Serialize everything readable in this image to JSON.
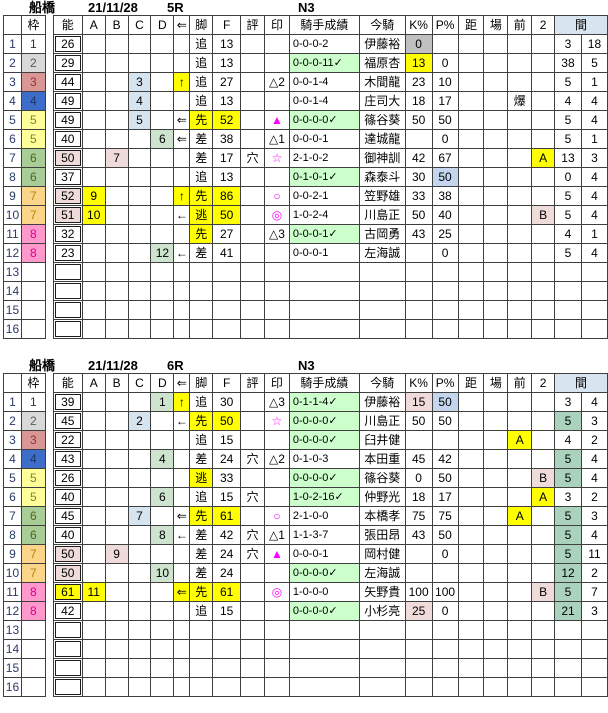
{
  "headers": [
    "",
    "枠",
    "",
    "能",
    "A",
    "B",
    "C",
    "D",
    "⇐",
    "脚",
    "F",
    "評",
    "印",
    "騎手成績",
    "今騎",
    "K%",
    "P%",
    "距",
    "場",
    "前",
    "2",
    "間"
  ],
  "colors": {
    "highlight_yellow": "#ffff00",
    "pale_blue": "#d6e4f0",
    "p_percent_blue": "#c3d6ee",
    "pale_green": "#cfe4cf",
    "interval_green": "#aad2bd",
    "rose": "#f0dbdb",
    "gray": "#c0c0c0",
    "record_green": "#ccffcc",
    "mark_magenta": "#ff00ff",
    "frame_colors": [
      "#ffffff",
      "#d9d9d9",
      "#da9694",
      "#3e6cc9",
      "#ffff99",
      "#a9cd96",
      "#fbd58a",
      "#ff99cc"
    ]
  },
  "tables": [
    {
      "title": {
        "track": "船橋",
        "date": "21/11/28",
        "race": "5R",
        "class": "N3"
      },
      "rows": [
        {
          "n": "1",
          "w": "1",
          "no": "26",
          "ashi": "追",
          "f": "13",
          "sei": "0-0-0-2",
          "jk": "伊藤裕",
          "k": "0",
          "kbg": "gray",
          "p": "",
          "m1": "3",
          "m2": "18"
        },
        {
          "n": "2",
          "w": "2",
          "no": "29",
          "ashi": "追",
          "f": "13",
          "sei": "0-0-0-11✓",
          "seiG": 1,
          "jk": "福原杏",
          "k": "13",
          "kbg": "y",
          "p": "0",
          "m1": "38",
          "m2": "5"
        },
        {
          "n": "3",
          "w": "3",
          "no": "44",
          "c": "3",
          "arw": "↑",
          "arwY": 1,
          "ashi": "追",
          "f": "27",
          "mk": "△2",
          "sei": "0-0-1-4",
          "jk": "木間龍",
          "k": "23",
          "p": "10",
          "m1": "5",
          "m2": "1"
        },
        {
          "n": "4",
          "w": "4",
          "no": "49",
          "c": "4",
          "ashi": "追",
          "f": "13",
          "sei": "0-0-1-4",
          "jk": "庄司大",
          "k": "18",
          "p": "17",
          "mae": "爆",
          "m1": "4",
          "m2": "4"
        },
        {
          "n": "5",
          "w": "5",
          "no": "49",
          "c": "5",
          "arw": "⇐",
          "ashi": "先",
          "ashiY": 1,
          "f": "52",
          "fY": 1,
          "mk": "▲",
          "mkM": 1,
          "sei": "0-0-0-0✓",
          "seiG": 1,
          "jk": "篠谷葵",
          "k": "50",
          "p": "50",
          "m1": "5",
          "m2": "4"
        },
        {
          "n": "6",
          "w": "5",
          "no": "40",
          "d": "6",
          "arw": "⇐",
          "ashi": "差",
          "f": "38",
          "mk": "△1",
          "sei": "0-0-0-1",
          "jk": "達城龍",
          "k": "",
          "p": "0",
          "m1": "5",
          "m2": "1"
        },
        {
          "n": "7",
          "w": "6",
          "no": "50",
          "nobg": "rose",
          "b": "7",
          "ashi": "差",
          "f": "17",
          "hyo": "穴",
          "mk": "☆",
          "mkM": 1,
          "sei": "2-1-0-2",
          "jk": "御神訓",
          "k": "42",
          "p": "67",
          "two": "A",
          "twoBg": "y",
          "m1": "13",
          "m2": "3"
        },
        {
          "n": "8",
          "w": "6",
          "no": "37",
          "ashi": "追",
          "f": "13",
          "sei": "0-1-0-1✓",
          "seiG": 1,
          "jk": "森泰斗",
          "k": "30",
          "p": "50",
          "pbg": "bluep",
          "m1": "0",
          "m2": "4"
        },
        {
          "n": "9",
          "w": "7",
          "no": "52",
          "nobg": "rose",
          "a": "9",
          "arw": "↑",
          "arwY": 1,
          "ashi": "先",
          "ashiY": 1,
          "f": "86",
          "fY": 1,
          "mk": "○",
          "mkM": 1,
          "sei": "0-0-2-1",
          "jk": "笠野雄",
          "k": "33",
          "p": "38",
          "m1": "5",
          "m2": "4"
        },
        {
          "n": "10",
          "w": "7",
          "no": "51",
          "nobg": "rose",
          "a": "10",
          "arw": "←",
          "ashi": "逃",
          "ashiY": 1,
          "f": "50",
          "fY": 1,
          "mk": "◎",
          "mkM": 1,
          "sei": "1-0-2-4",
          "jk": "川島正",
          "k": "50",
          "p": "40",
          "two": "B",
          "twoBg": "rose",
          "m1": "5",
          "m2": "4"
        },
        {
          "n": "11",
          "w": "8",
          "no": "32",
          "ashi": "先",
          "ashiY": 1,
          "f": "27",
          "mk": "△3",
          "sei": "0-0-0-1✓",
          "seiG": 1,
          "jk": "古岡勇",
          "k": "43",
          "p": "25",
          "m1": "4",
          "m2": "1"
        },
        {
          "n": "12",
          "w": "8",
          "no": "23",
          "d": "12",
          "arw": "←",
          "ashi": "差",
          "f": "41",
          "sei": "0-0-0-1",
          "jk": "左海誠",
          "k": "",
          "p": "0",
          "m1": "5",
          "m2": "4"
        },
        {
          "n": "13"
        },
        {
          "n": "14"
        },
        {
          "n": "15"
        },
        {
          "n": "16"
        }
      ]
    },
    {
      "title": {
        "track": "船橋",
        "date": "21/11/28",
        "race": "6R",
        "class": "N3"
      },
      "rows": [
        {
          "n": "1",
          "w": "1",
          "no": "39",
          "d": "1",
          "arw": "↑",
          "arwY": 1,
          "ashi": "追",
          "f": "30",
          "mk": "△3",
          "sei": "0-1-1-4✓",
          "seiG": 1,
          "jk": "伊藤裕",
          "k": "15",
          "kbg": "rose",
          "p": "50",
          "pbg": "bluep",
          "m1": "3",
          "m2": "4"
        },
        {
          "n": "2",
          "w": "2",
          "no": "45",
          "c": "2",
          "arw": "←",
          "ashi": "先",
          "ashiY": 1,
          "f": "50",
          "fY": 1,
          "mk": "☆",
          "mkM": 1,
          "sei": "0-0-0-0✓",
          "seiG": 1,
          "jk": "川島正",
          "k": "50",
          "p": "50",
          "m1": "5",
          "m1G": 1,
          "m2": "3"
        },
        {
          "n": "3",
          "w": "3",
          "no": "22",
          "ashi": "追",
          "f": "15",
          "sei": "0-0-0-0✓",
          "seiG": 1,
          "jk": "臼井健",
          "k": "",
          "p": "",
          "mae": "A",
          "maeY": 1,
          "m1": "4",
          "m2": "2"
        },
        {
          "n": "4",
          "w": "4",
          "no": "43",
          "d": "4",
          "ashi": "差",
          "f": "24",
          "hyo": "穴",
          "mk": "△2",
          "sei": "0-1-0-3",
          "jk": "本田重",
          "k": "45",
          "p": "42",
          "m1": "5",
          "m1G": 1,
          "m2": "4"
        },
        {
          "n": "5",
          "w": "5",
          "no": "26",
          "ashi": "逃",
          "ashiY": 1,
          "f": "33",
          "sei": "0-0-0-0✓",
          "seiG": 1,
          "jk": "篠谷葵",
          "k": "0",
          "p": "50",
          "two": "B",
          "twoBg": "rose",
          "m1": "5",
          "m1G": 1,
          "m2": "4"
        },
        {
          "n": "6",
          "w": "5",
          "no": "40",
          "d": "6",
          "ashi": "追",
          "f": "15",
          "hyo": "穴",
          "sei": "1-0-2-16✓",
          "seiG": 1,
          "jk": "仲野光",
          "k": "18",
          "p": "17",
          "two": "A",
          "twoBg": "y",
          "m1": "3",
          "m2": "2"
        },
        {
          "n": "7",
          "w": "6",
          "no": "45",
          "c": "7",
          "arw": "⇐",
          "ashi": "先",
          "ashiY": 1,
          "f": "61",
          "fY": 1,
          "mk": "○",
          "mkM": 1,
          "sei": "2-1-0-0",
          "jk": "本橋孝",
          "k": "75",
          "p": "75",
          "mae": "A",
          "maeY": 1,
          "m1": "5",
          "m1G": 1,
          "m2": "3"
        },
        {
          "n": "8",
          "w": "6",
          "no": "40",
          "d": "8",
          "arw": "←",
          "ashi": "差",
          "f": "42",
          "hyo": "穴",
          "mk": "△1",
          "sei": "1-1-3-7",
          "jk": "張田昂",
          "k": "43",
          "p": "50",
          "m1": "5",
          "m1G": 1,
          "m2": "4"
        },
        {
          "n": "9",
          "w": "7",
          "no": "50",
          "nobg": "rose",
          "b": "9",
          "ashi": "差",
          "f": "24",
          "hyo": "穴",
          "mk": "▲",
          "mkM": 1,
          "sei": "0-0-0-1",
          "jk": "岡村健",
          "k": "",
          "p": "0",
          "m1": "5",
          "m1G": 1,
          "m2": "11"
        },
        {
          "n": "10",
          "w": "7",
          "no": "50",
          "nobg": "rose",
          "d": "10",
          "ashi": "差",
          "f": "24",
          "sei": "0-0-0-0✓",
          "seiG": 1,
          "jk": "左海誠",
          "k": "",
          "p": "",
          "m1": "12",
          "m1G": 1,
          "m2": "2"
        },
        {
          "n": "11",
          "w": "8",
          "no": "61",
          "nobg": "y",
          "a": "11",
          "arw": "⇐",
          "arwY": 1,
          "ashi": "先",
          "ashiY": 1,
          "f": "61",
          "fY": 1,
          "mk": "◎",
          "mkM": 1,
          "sei": "1-0-0-0",
          "jk": "矢野貴",
          "k": "100",
          "p": "100",
          "two": "B",
          "twoBg": "rose",
          "m1": "5",
          "m1G": 1,
          "m2": "7"
        },
        {
          "n": "12",
          "w": "8",
          "no": "42",
          "ashi": "追",
          "f": "15",
          "sei": "0-0-0-0✓",
          "seiG": 1,
          "jk": "小杉亮",
          "k": "25",
          "kbg": "rose",
          "p": "0",
          "m1": "21",
          "m1G": 1,
          "m2": "3"
        },
        {
          "n": "13"
        },
        {
          "n": "14"
        },
        {
          "n": "15"
        },
        {
          "n": "16"
        }
      ]
    }
  ]
}
